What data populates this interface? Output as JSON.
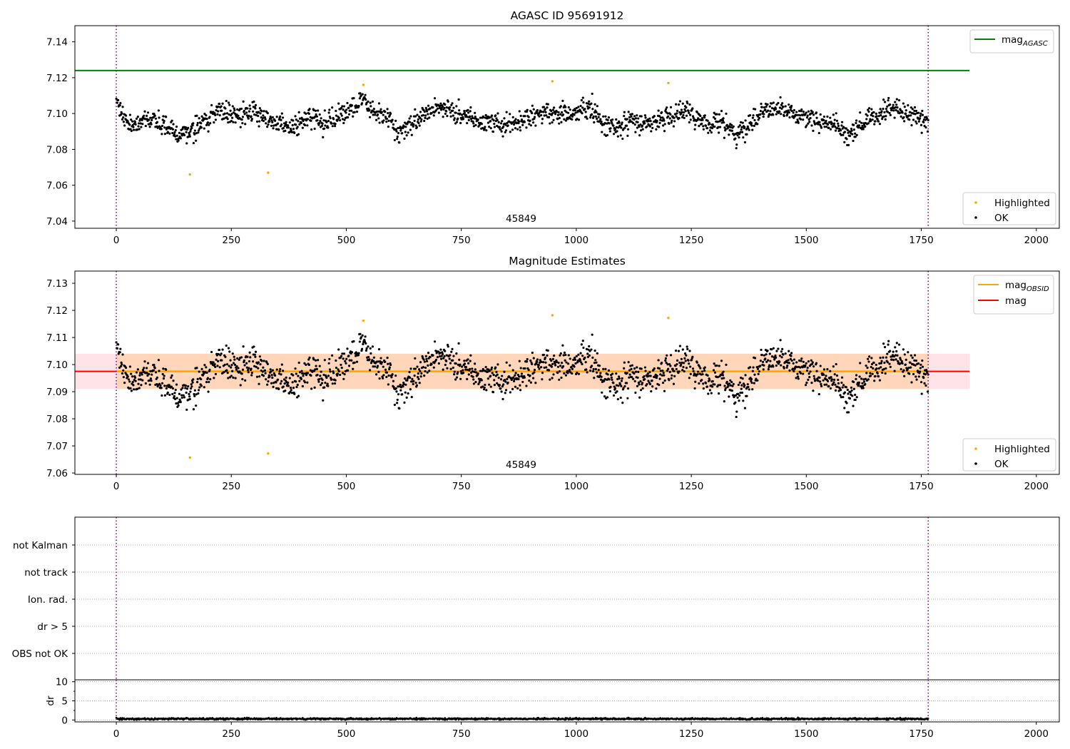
{
  "chart_data": [
    {
      "type": "scatter",
      "title": "AGASC ID 95691912",
      "xlim": [
        -90,
        2050
      ],
      "ylim": [
        7.036,
        7.149
      ],
      "xticks": [
        0,
        250,
        500,
        750,
        1000,
        1250,
        1500,
        1750,
        2000
      ],
      "yticks": [
        7.04,
        7.06,
        7.08,
        7.1,
        7.12,
        7.14
      ],
      "ytick_decimals": 2,
      "obsid_label": "45849",
      "obsid_label_x": 880,
      "obs_boundaries": [
        0,
        1765
      ],
      "reference_lines": [
        {
          "name": "mag_AGASC",
          "base": "mag",
          "sub": "AGASC",
          "value": 7.124,
          "x_range": [
            -90,
            1855
          ],
          "color": "#008000"
        }
      ],
      "legend_lines": [
        {
          "base": "mag",
          "sub": "AGASC",
          "color": "#008000"
        }
      ],
      "legend_points": [
        {
          "label": "Highlighted",
          "color": "#ffa500"
        },
        {
          "label": "OK",
          "color": "#000000"
        }
      ],
      "highlighted_points": [
        {
          "x": 160,
          "y": 7.066
        },
        {
          "x": 330,
          "y": 7.067
        },
        {
          "x": 537,
          "y": 7.116
        },
        {
          "x": 948,
          "y": 7.118
        },
        {
          "x": 1200,
          "y": 7.117
        }
      ],
      "ok_points_source": "shared_series.mag_ok"
    },
    {
      "type": "scatter",
      "title": "Magnitude Estimates",
      "xlim": [
        -90,
        2050
      ],
      "ylim": [
        7.0595,
        7.1345
      ],
      "xticks": [
        0,
        250,
        500,
        750,
        1000,
        1250,
        1500,
        1750,
        2000
      ],
      "yticks": [
        7.06,
        7.07,
        7.08,
        7.09,
        7.1,
        7.11,
        7.12,
        7.13
      ],
      "ytick_decimals": 2,
      "obsid_label": "45849",
      "obsid_label_x": 880,
      "obs_boundaries": [
        0,
        1765
      ],
      "bands": [
        {
          "name": "mag range",
          "low": 7.091,
          "high": 7.104,
          "x_range": [
            -90,
            1855
          ],
          "color": "#ffc0cb",
          "opacity": 0.45
        },
        {
          "name": "mag_OBSID range",
          "low": 7.091,
          "high": 7.104,
          "x_range": [
            0,
            1765
          ],
          "color": "#ffa500",
          "opacity": 0.2
        }
      ],
      "reference_lines": [
        {
          "name": "mag",
          "base": "mag",
          "sub": "",
          "value": 7.0975,
          "x_range": [
            -90,
            1855
          ],
          "color": "#ff0000"
        },
        {
          "name": "mag_OBSID",
          "base": "mag",
          "sub": "OBSID",
          "value": 7.0975,
          "x_range": [
            0,
            1765
          ],
          "color": "#ffa500"
        }
      ],
      "legend_lines": [
        {
          "base": "mag",
          "sub": "OBSID",
          "color": "#ffa500"
        },
        {
          "base": "mag",
          "sub": "",
          "color": "#ff0000"
        }
      ],
      "legend_points": [
        {
          "label": "Highlighted",
          "color": "#ffa500"
        },
        {
          "label": "OK",
          "color": "#000000"
        }
      ],
      "highlighted_points": [
        {
          "x": 160,
          "y": 7.0657
        },
        {
          "x": 330,
          "y": 7.0672
        },
        {
          "x": 537,
          "y": 7.1162
        },
        {
          "x": 948,
          "y": 7.1182
        },
        {
          "x": 1200,
          "y": 7.1172
        }
      ],
      "ok_points_source": "shared_series.mag_ok"
    },
    {
      "type": "scatter",
      "title": "",
      "categories": [
        "not Kalman",
        "not track",
        "Ion. rad.",
        "dr > 5",
        "OBS not OK"
      ],
      "flag_counts": [
        0,
        0,
        0,
        0,
        0
      ],
      "obs_boundaries": [
        0,
        1765
      ],
      "xlim": [
        -90,
        2050
      ],
      "grid": true
    },
    {
      "type": "scatter",
      "title": "",
      "ylabel": "dr",
      "xlim": [
        -90,
        2050
      ],
      "ylim": [
        -0.5,
        10.5
      ],
      "yticks": [
        0,
        5,
        10
      ],
      "ytick_decimals": 0,
      "xticks": [
        0,
        250,
        500,
        750,
        1000,
        1250,
        1500,
        1750,
        2000
      ],
      "obs_boundaries": [
        0,
        1765
      ],
      "dr_threshold": 10,
      "dr_points_source": "shared_series.dr"
    }
  ],
  "shared_series": {
    "x_start": 0,
    "x_end": 1765,
    "mag_ok_anchors": [
      [
        0,
        7.107
      ],
      [
        30,
        7.093
      ],
      [
        60,
        7.095
      ],
      [
        100,
        7.096
      ],
      [
        135,
        7.087
      ],
      [
        160,
        7.09
      ],
      [
        195,
        7.097
      ],
      [
        225,
        7.101
      ],
      [
        260,
        7.099
      ],
      [
        300,
        7.102
      ],
      [
        330,
        7.097
      ],
      [
        355,
        7.094
      ],
      [
        380,
        7.092
      ],
      [
        420,
        7.099
      ],
      [
        450,
        7.095
      ],
      [
        480,
        7.098
      ],
      [
        510,
        7.104
      ],
      [
        535,
        7.108
      ],
      [
        560,
        7.1
      ],
      [
        590,
        7.097
      ],
      [
        615,
        7.088
      ],
      [
        640,
        7.095
      ],
      [
        670,
        7.1
      ],
      [
        700,
        7.104
      ],
      [
        730,
        7.101
      ],
      [
        760,
        7.098
      ],
      [
        800,
        7.096
      ],
      [
        840,
        7.093
      ],
      [
        870,
        7.095
      ],
      [
        900,
        7.099
      ],
      [
        930,
        7.101
      ],
      [
        955,
        7.1
      ],
      [
        990,
        7.099
      ],
      [
        1020,
        7.103
      ],
      [
        1045,
        7.1
      ],
      [
        1060,
        7.094
      ],
      [
        1090,
        7.092
      ],
      [
        1120,
        7.096
      ],
      [
        1150,
        7.095
      ],
      [
        1180,
        7.096
      ],
      [
        1210,
        7.099
      ],
      [
        1240,
        7.101
      ],
      [
        1265,
        7.098
      ],
      [
        1290,
        7.094
      ],
      [
        1320,
        7.096
      ],
      [
        1345,
        7.087
      ],
      [
        1370,
        7.092
      ],
      [
        1400,
        7.101
      ],
      [
        1430,
        7.102
      ],
      [
        1460,
        7.1
      ],
      [
        1500,
        7.097
      ],
      [
        1530,
        7.096
      ],
      [
        1560,
        7.095
      ],
      [
        1590,
        7.087
      ],
      [
        1620,
        7.094
      ],
      [
        1650,
        7.099
      ],
      [
        1680,
        7.103
      ],
      [
        1710,
        7.101
      ],
      [
        1740,
        7.098
      ],
      [
        1765,
        7.094
      ]
    ],
    "mag_ok_noise": 0.0052,
    "dr_mean": 0.3,
    "dr_noise": 0.12,
    "point_count": 1765
  }
}
